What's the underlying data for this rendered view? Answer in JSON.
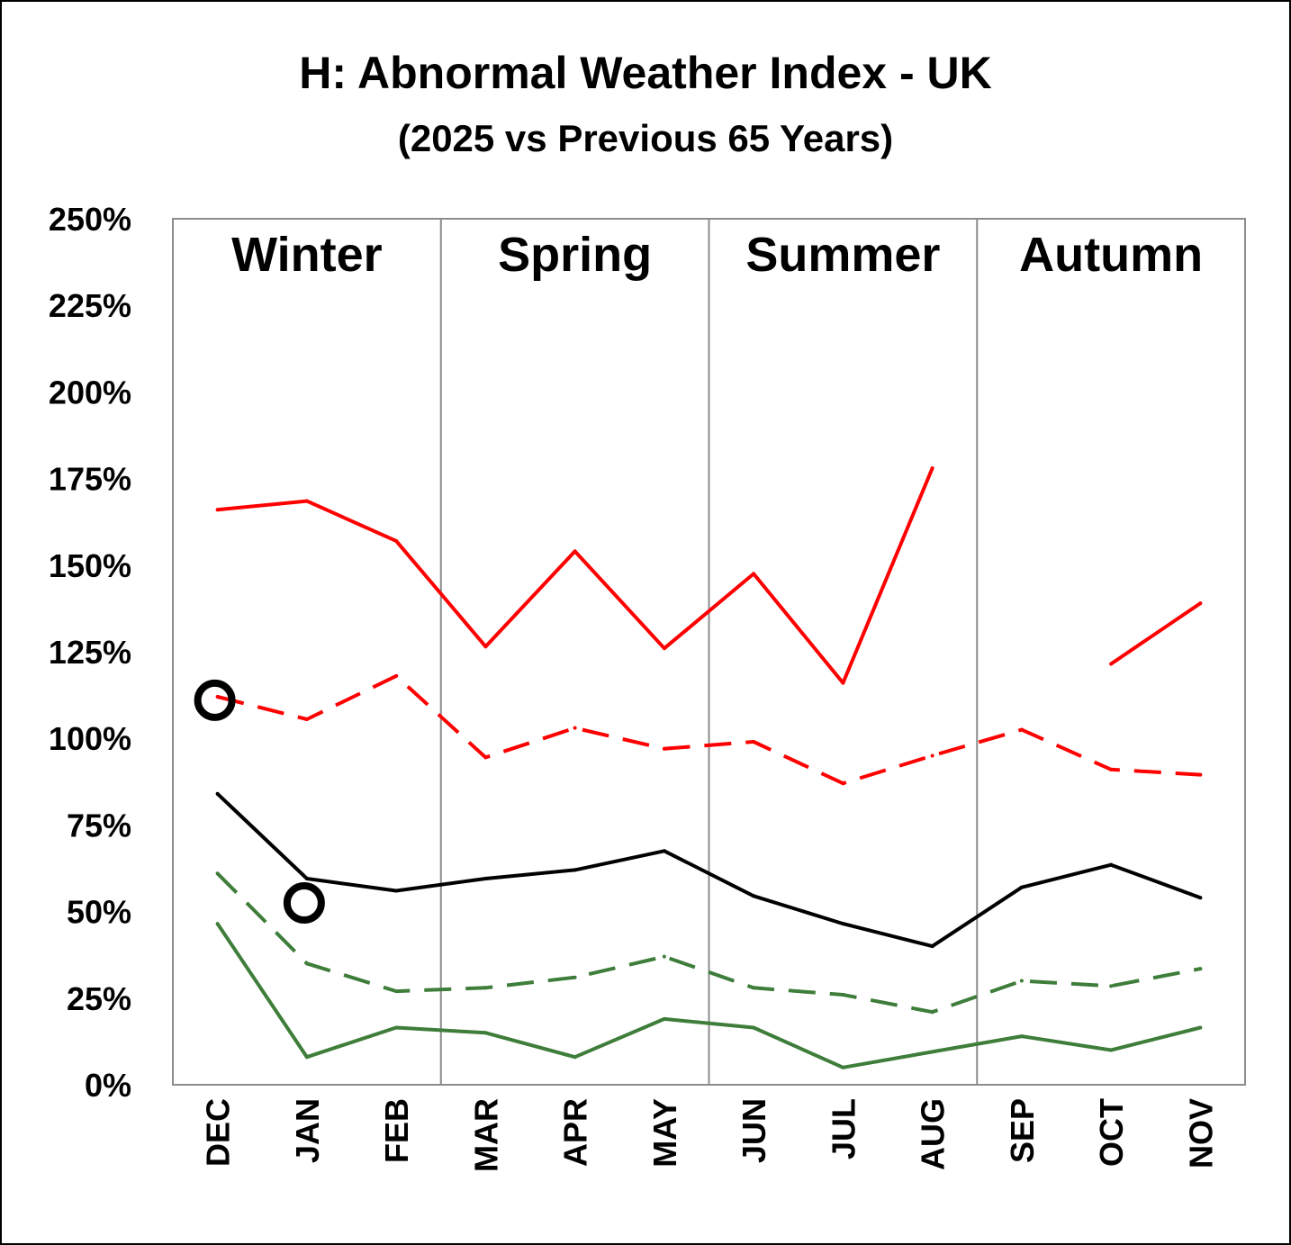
{
  "chart_data": {
    "type": "line",
    "title": "H: Abnormal Weather Index - UK",
    "subtitle": "(2025 vs Previous 65 Years)",
    "categories": [
      "DEC",
      "JAN",
      "FEB",
      "MAR",
      "APR",
      "MAY",
      "JUN",
      "JUL",
      "AUG",
      "SEP",
      "OCT",
      "NOV"
    ],
    "seasons": [
      "Winter",
      "Spring",
      "Summer",
      "Autumn"
    ],
    "yticks": [
      "0%",
      "25%",
      "50%",
      "75%",
      "100%",
      "125%",
      "150%",
      "175%",
      "200%",
      "225%",
      "250%"
    ],
    "ylim": [
      0,
      250
    ],
    "grid": false,
    "series": [
      {
        "color": "#ff0000",
        "style": "solid",
        "values": [
          166,
          168.5,
          157,
          126.5,
          154,
          126,
          147.5,
          116,
          178,
          null,
          121.5,
          139
        ]
      },
      {
        "color": "#ff0000",
        "style": "dashed",
        "values": [
          112,
          105.5,
          118,
          94.5,
          103,
          97,
          99,
          87,
          95,
          102.5,
          91,
          89.5
        ]
      },
      {
        "color": "#000000",
        "style": "solid",
        "values": [
          84,
          59.5,
          56,
          59.5,
          62,
          67.5,
          54.5,
          46.5,
          40,
          57,
          63.5,
          54
        ]
      },
      {
        "color": "#3e7d3a",
        "style": "dashed",
        "values": [
          61,
          35,
          27,
          28,
          31,
          37,
          28,
          26,
          21,
          30,
          28.5,
          33.5
        ]
      },
      {
        "color": "#3e7d3a",
        "style": "solid",
        "values": [
          46.5,
          8,
          16.5,
          15,
          8,
          19,
          16.5,
          5,
          9.5,
          14,
          10,
          16.5
        ]
      }
    ],
    "markers": [
      {
        "category": "DEC",
        "value": 111
      },
      {
        "category": "JAN",
        "value": 52.5
      }
    ]
  }
}
